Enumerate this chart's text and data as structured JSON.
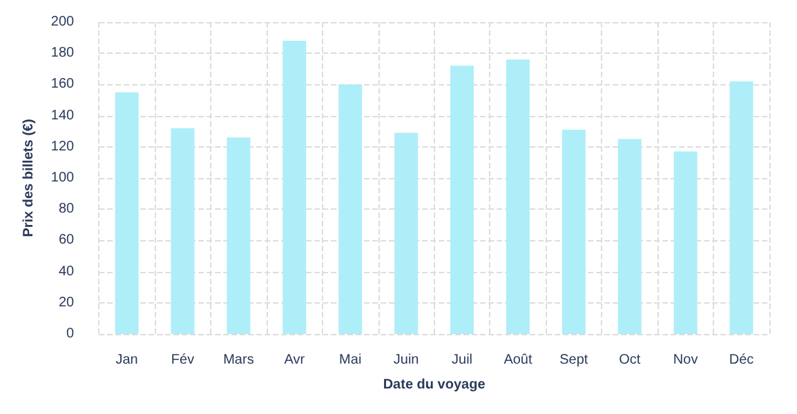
{
  "chart_data": {
    "type": "bar",
    "xlabel": "Date du voyage",
    "ylabel": "Prix des billets (€)",
    "categories": [
      "Jan",
      "Fév",
      "Mars",
      "Avr",
      "Mai",
      "Juin",
      "Juil",
      "Août",
      "Sept",
      "Oct",
      "Nov",
      "Déc"
    ],
    "values": [
      155,
      132,
      126,
      188,
      160,
      129,
      172,
      176,
      131,
      125,
      117,
      162
    ],
    "color": "#aeeef8",
    "ylim": [
      0,
      200
    ],
    "yticks": [
      0,
      20,
      40,
      60,
      80,
      100,
      120,
      140,
      160,
      180,
      200
    ],
    "grid": true
  }
}
